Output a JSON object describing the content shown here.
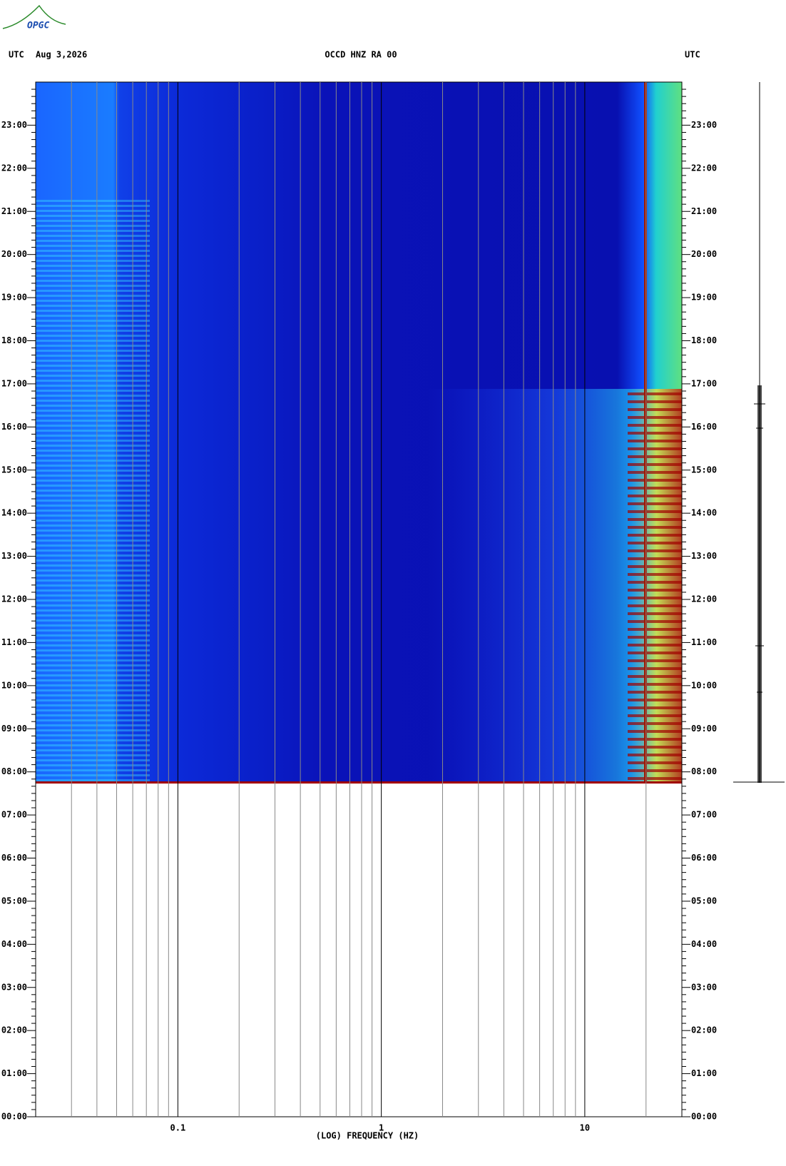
{
  "chart_data": {
    "type": "spectrogram",
    "logo": "OPGC",
    "title": "OCCD HNZ RA 00",
    "date": "Aug 3,2026",
    "left_label": "UTC",
    "right_label": "UTC",
    "x_label": "(LOG) FREQUENCY (HZ)",
    "x_log": true,
    "xlim": [
      0.02,
      30
    ],
    "xticks": [
      0.1,
      1,
      10
    ],
    "xticks_minor": [
      0.03,
      0.04,
      0.05,
      0.06,
      0.07,
      0.08,
      0.09,
      0.2,
      0.3,
      0.4,
      0.5,
      0.6,
      0.7,
      0.8,
      0.9,
      2,
      3,
      4,
      5,
      6,
      7,
      8,
      9,
      20
    ],
    "ylim": [
      0,
      24
    ],
    "yticks": [
      {
        "value": 0,
        "label": "00:00"
      },
      {
        "value": 1,
        "label": "01:00"
      },
      {
        "value": 2,
        "label": "02:00"
      },
      {
        "value": 3,
        "label": "03:00"
      },
      {
        "value": 4,
        "label": "04:00"
      },
      {
        "value": 5,
        "label": "05:00"
      },
      {
        "value": 6,
        "label": "06:00"
      },
      {
        "value": 7,
        "label": "07:00"
      },
      {
        "value": 8,
        "label": "08:00"
      },
      {
        "value": 9,
        "label": "09:00"
      },
      {
        "value": 10,
        "label": "10:00"
      },
      {
        "value": 11,
        "label": "11:00"
      },
      {
        "value": 12,
        "label": "12:00"
      },
      {
        "value": 13,
        "label": "13:00"
      },
      {
        "value": 14,
        "label": "14:00"
      },
      {
        "value": 15,
        "label": "15:00"
      },
      {
        "value": 16,
        "label": "16:00"
      },
      {
        "value": 17,
        "label": "17:00"
      },
      {
        "value": 18,
        "label": "18:00"
      },
      {
        "value": 19,
        "label": "19:00"
      },
      {
        "value": 20,
        "label": "20:00"
      },
      {
        "value": 21,
        "label": "21:00"
      },
      {
        "value": 22,
        "label": "22:00"
      },
      {
        "value": 23,
        "label": "23:00"
      }
    ]
  }
}
